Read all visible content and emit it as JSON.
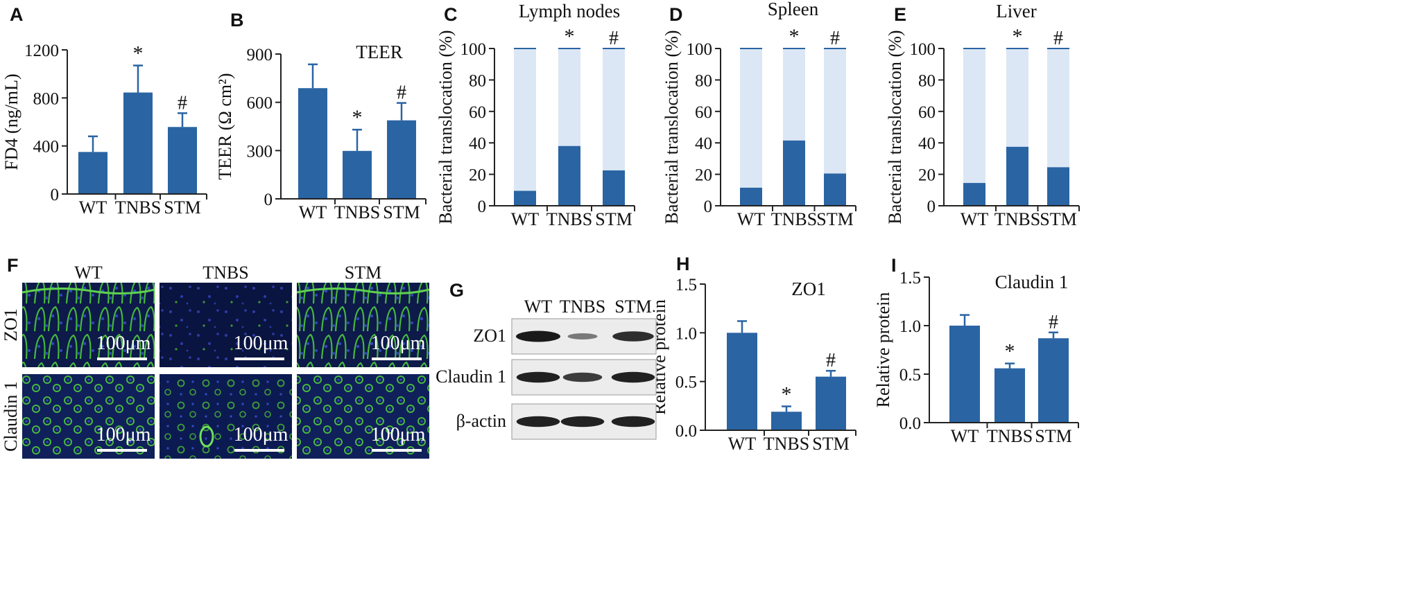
{
  "colors": {
    "bar": "#2a64a3",
    "bar_light": "#dbe7f4",
    "axis": "#222222",
    "micro_bg": "#0a1230",
    "micro_green": "#4cc43f",
    "micro_blue": "#2e3fb0",
    "blot_bg": "#ececec",
    "band": "#1a1a1a"
  },
  "chart_data": [
    {
      "id": "A",
      "letter": "A",
      "type": "bar",
      "title": "",
      "ylabel": "FD4 (ng/mL)",
      "categories": [
        "WT",
        "TNBS",
        "STM"
      ],
      "values": [
        350,
        845,
        558
      ],
      "errors": [
        130,
        225,
        115
      ],
      "annotations": [
        "",
        "*",
        "#"
      ],
      "ylim": [
        0,
        1200
      ],
      "yticks": [
        "0",
        "400",
        "800",
        "1200"
      ],
      "ytick_values": [
        0,
        400,
        800,
        1200
      ]
    },
    {
      "id": "B",
      "letter": "B",
      "type": "bar",
      "title": "TEER",
      "ylabel": "TEER (Ω cm²)",
      "categories": [
        "WT",
        "TNBS",
        "STM"
      ],
      "values": [
        688,
        298,
        488
      ],
      "errors": [
        148,
        132,
        108
      ],
      "annotations": [
        "",
        "*",
        "#"
      ],
      "ylim": [
        0,
        900
      ],
      "yticks": [
        "0",
        "300",
        "600",
        "900"
      ],
      "ytick_values": [
        0,
        300,
        600,
        900
      ]
    },
    {
      "id": "C",
      "letter": "C",
      "type": "bar",
      "title": "Lymph nodes",
      "ylabel": "Bacterial translocation (%)",
      "categories": [
        "WT",
        "TNBS",
        "STM"
      ],
      "values": [
        9.5,
        38,
        22.5
      ],
      "totals": [
        100,
        100,
        100
      ],
      "annotations": [
        "",
        "*",
        "#"
      ],
      "ylim": [
        0,
        100
      ],
      "yticks": [
        "0",
        "20",
        "40",
        "60",
        "80",
        "100"
      ],
      "ytick_values": [
        0,
        20,
        40,
        60,
        80,
        100
      ]
    },
    {
      "id": "D",
      "letter": "D",
      "type": "bar",
      "title": "Spleen",
      "ylabel": "Bacterial translocation (%)",
      "categories": [
        "WT",
        "TNBS",
        "STM"
      ],
      "values": [
        11.5,
        41.5,
        20.5
      ],
      "totals": [
        100,
        100,
        100
      ],
      "annotations": [
        "",
        "*",
        "#"
      ],
      "ylim": [
        0,
        100
      ],
      "yticks": [
        "0",
        "20",
        "40",
        "60",
        "80",
        "100"
      ],
      "ytick_values": [
        0,
        20,
        40,
        60,
        80,
        100
      ]
    },
    {
      "id": "E",
      "letter": "E",
      "type": "bar",
      "title": "Liver",
      "ylabel": "Bacterial translocation (%)",
      "categories": [
        "WT",
        "TNBS",
        "STM"
      ],
      "values": [
        14.5,
        37.5,
        24.5
      ],
      "totals": [
        100,
        100,
        100
      ],
      "annotations": [
        "",
        "*",
        "#"
      ],
      "ylim": [
        0,
        100
      ],
      "yticks": [
        "0",
        "20",
        "40",
        "60",
        "80",
        "100"
      ],
      "ytick_values": [
        0,
        20,
        40,
        60,
        80,
        100
      ]
    },
    {
      "id": "H",
      "letter": "H",
      "type": "bar",
      "title": "ZO1",
      "ylabel": "Relative protein",
      "categories": [
        "WT",
        "TNBS",
        "STM"
      ],
      "values": [
        1.0,
        0.19,
        0.55
      ],
      "errors": [
        0.12,
        0.055,
        0.06
      ],
      "annotations": [
        "",
        "*",
        "#"
      ],
      "ylim": [
        0,
        1.5
      ],
      "yticks": [
        "0.0",
        "0.5",
        "1.0",
        "1.5"
      ],
      "ytick_values": [
        0,
        0.5,
        1.0,
        1.5
      ]
    },
    {
      "id": "I",
      "letter": "I",
      "type": "bar",
      "title": "Claudin 1",
      "ylabel": "Relative protein",
      "categories": [
        "WT",
        "TNBS",
        "STM"
      ],
      "values": [
        1.0,
        0.56,
        0.87
      ],
      "errors": [
        0.11,
        0.05,
        0.06
      ],
      "annotations": [
        "",
        "*",
        "#"
      ],
      "ylim": [
        0,
        1.5
      ],
      "yticks": [
        "0.0",
        "0.5",
        "1.0",
        "1.5"
      ],
      "ytick_values": [
        0,
        0.5,
        1.0,
        1.5
      ]
    }
  ],
  "microscopy": {
    "letter": "F",
    "columns": [
      "WT",
      "TNBS",
      "STM"
    ],
    "rows": [
      "ZO1",
      "Claudin 1"
    ],
    "scale_label": "100μm"
  },
  "western_blot": {
    "letter": "G",
    "lanes": [
      "WT",
      "TNBS",
      "STM"
    ],
    "rows": [
      {
        "label": "ZO1",
        "intensity": [
          1.0,
          0.3,
          0.85
        ]
      },
      {
        "label": "Claudin 1",
        "intensity": [
          0.95,
          0.75,
          0.95
        ]
      },
      {
        "label": "β-actin",
        "intensity": [
          0.95,
          0.95,
          0.95
        ]
      }
    ]
  }
}
